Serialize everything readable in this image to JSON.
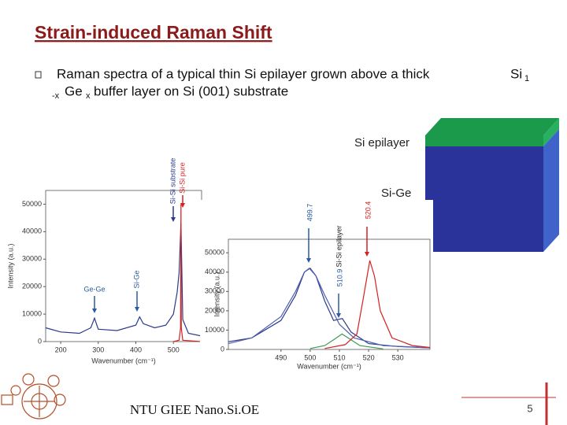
{
  "slide": {
    "title": "Strain-induced Raman Shift",
    "bullet": {
      "line1": "Raman spectra of a typical thin Si epilayer grown above a thick",
      "si": "Si",
      "sub1": "1",
      "subx1": "-x",
      "ge": "Ge",
      "subx2": "x",
      "line2": "buffer layer on Si (001) substrate"
    },
    "diagram": {
      "top_layer": "Si epilayer",
      "bottom_layer": "Si-Ge"
    },
    "footer": "NTU GIEE Nano.Si.OE",
    "page_number": "5"
  },
  "chart_data": [
    {
      "type": "line",
      "x_label": "Wavenumber (cm⁻¹)",
      "y_label": "Intensity (a.u.)",
      "xlim": [
        160,
        575
      ],
      "ylim": [
        0,
        55000
      ],
      "xticks": [
        200,
        300,
        400,
        500
      ],
      "yticks": [
        0,
        10000,
        20000,
        30000,
        40000,
        50000
      ],
      "annotations": [
        "Ge-Ge",
        "Si-Ge",
        "Si-Si substrate",
        "Si-Si pure"
      ],
      "series": [
        {
          "color": "#2a3a8c",
          "x": [
            160,
            200,
            250,
            280,
            290,
            300,
            350,
            400,
            410,
            420,
            450,
            480,
            500,
            510,
            515,
            520,
            525,
            540,
            575
          ],
          "values": [
            5000,
            3500,
            3000,
            5000,
            8500,
            4500,
            4000,
            6000,
            9000,
            6500,
            5000,
            6000,
            10000,
            18000,
            25000,
            43000,
            8000,
            3000,
            2000
          ]
        },
        {
          "color": "#d62020",
          "x": [
            500,
            515,
            519,
            520,
            521,
            525,
            575
          ],
          "values": [
            0,
            500,
            5000,
            50000,
            5000,
            500,
            0
          ]
        }
      ]
    },
    {
      "type": "line",
      "x_label": "Wavenumber (cm⁻¹)",
      "y_label": "Intensity (a.u.)",
      "xlim": [
        472,
        541
      ],
      "ylim": [
        0,
        57000
      ],
      "xticks": [
        490,
        500,
        510,
        520,
        530
      ],
      "yticks": [
        0,
        10000,
        20000,
        30000,
        40000,
        50000
      ],
      "annotations": [
        "499.7",
        "510.9",
        "Si-Si epilayer",
        "520.4"
      ],
      "series": [
        {
          "color": "#2a3a8c",
          "x": [
            472,
            480,
            490,
            495,
            498,
            500,
            502,
            505,
            508,
            511,
            514,
            520,
            530,
            541
          ],
          "values": [
            4000,
            6000,
            15000,
            28000,
            40000,
            42000,
            38000,
            25000,
            15000,
            16000,
            9000,
            3000,
            1500,
            800
          ]
        },
        {
          "color": "#5060b0",
          "x": [
            472,
            480,
            490,
            495,
            498,
            499.7,
            502,
            505,
            510,
            515,
            525,
            541
          ],
          "values": [
            3000,
            6000,
            17000,
            30000,
            40000,
            42000,
            38000,
            28000,
            13000,
            6000,
            2000,
            800
          ]
        },
        {
          "color": "#3a9a50",
          "x": [
            500,
            505,
            508,
            510.9,
            514,
            517,
            525
          ],
          "values": [
            500,
            2000,
            5000,
            8000,
            5000,
            2000,
            300
          ]
        },
        {
          "color": "#d62020",
          "x": [
            505,
            512,
            516,
            518,
            520.4,
            522,
            524,
            528,
            535,
            541
          ],
          "values": [
            500,
            2500,
            8000,
            25000,
            46000,
            38000,
            20000,
            6000,
            2000,
            1000
          ]
        }
      ]
    }
  ]
}
